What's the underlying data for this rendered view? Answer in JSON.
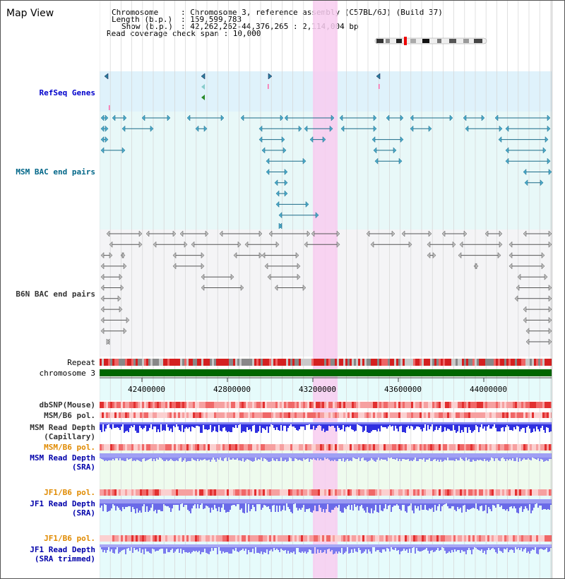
{
  "title": "Map View",
  "info": {
    "chromosome_key": "Chromosome",
    "chromosome_value": ": Chromosome 3, reference assembly (C57BL/6J) (Build 37)",
    "length_key": "Length (b.p.)",
    "length_value": ": 159,599,783",
    "show_key": "Show (b.p.)",
    "show_value": ": 42,262,262-44,376,265 : 2,114,004 bp",
    "coverage_line": "Read coverage check span : 10,000"
  },
  "tracks": {
    "refseq": "RefSeq Genes",
    "msm_bac": "MSM BAC end pairs",
    "b6n_bac": "B6N BAC end pairs",
    "repeat": "Repeat",
    "chromosome": "chromosome 3",
    "dbsnp": "dbSNP(Mouse)",
    "msm_pol1": "MSM/B6 pol.",
    "msm_depth_cap_1": "MSM Read Depth",
    "msm_depth_cap_2": "(Capillary)",
    "msm_pol2": "MSM/B6 pol.",
    "msm_depth_sra_1": "MSM Read Depth",
    "msm_depth_sra_2": "(SRA)",
    "jf1_pol1": "JF1/B6 pol.",
    "jf1_depth_1": "JF1 Read Depth",
    "jf1_depth_2": "(SRA)",
    "jf1_pol2": "JF1/B6 pol.",
    "jf1_trim_1": "JF1 Read Depth",
    "jf1_trim_2": "(SRA trimmed)"
  },
  "axis": {
    "ticks": [
      "42400000",
      "42800000",
      "43200000",
      "43600000",
      "44000000"
    ]
  },
  "colors": {
    "refseq_label": "#0000cc",
    "msm_label": "#006688",
    "orange_label": "#e08a00",
    "blue_label": "#0000aa",
    "highlight": "#f8ccf0",
    "chromosome_band": "#006600"
  }
}
